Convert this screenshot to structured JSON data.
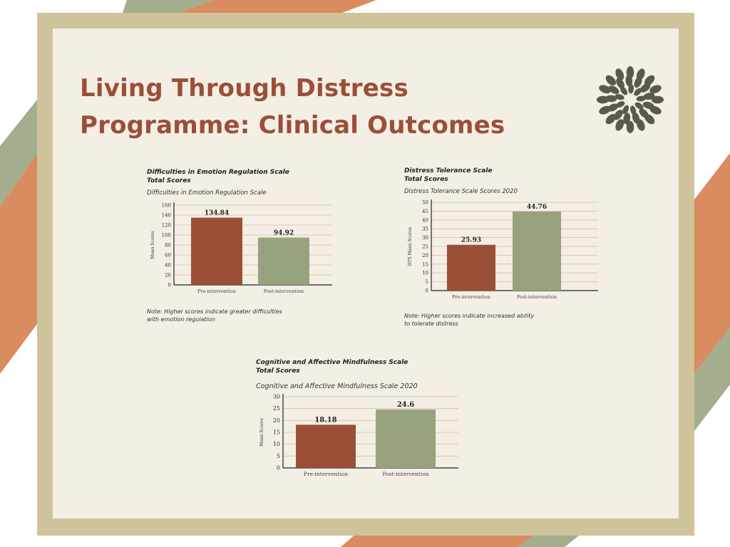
{
  "page": {
    "title_lines": [
      "Living Through Distress",
      "Programme: Clinical Outcomes"
    ]
  },
  "colors": {
    "frame": "#cfc39b",
    "card": "#f3efe5",
    "title": "#9b4f37",
    "pre_bar": "#9b4f37",
    "post_bar": "#97a37f",
    "gridline": "#e6b9a1",
    "decor_green": "#a3ae8f",
    "decor_orange": "#d98c60",
    "logo": "#5a5a4a"
  },
  "logo": {
    "icon": "leaf-wreath-icon"
  },
  "chart_data": [
    {
      "type": "bar",
      "title_lines": [
        "Difficulties in Emotion Regulation Scale",
        "Total Scores"
      ],
      "subtitle": "Difficulties in Emotion Regulation Scale",
      "ylabel": "Mean Scores",
      "xlabel": "",
      "categories": [
        "Pre-intervention",
        "Post-intervention"
      ],
      "values": [
        134.84,
        94.92
      ],
      "value_labels": [
        "134.84",
        "94.92"
      ],
      "ylim": [
        0,
        160
      ],
      "yticks": [
        0,
        20,
        40,
        60,
        80,
        100,
        120,
        140,
        160
      ],
      "grid": true,
      "note_lines": [
        "Note: Higher scores indicate greater difficulties",
        "with emotion regulation"
      ]
    },
    {
      "type": "bar",
      "title_lines": [
        "Distress Tolerance Scale",
        "Total Scores"
      ],
      "subtitle": "Distress Tolerance Scale Scores 2020",
      "ylabel": "DTS Mean Scores",
      "xlabel": "",
      "categories": [
        "Pre-intervention",
        "Post-intervention"
      ],
      "values": [
        25.93,
        44.76
      ],
      "value_labels": [
        "25.93",
        "44.76"
      ],
      "ylim": [
        0,
        50
      ],
      "yticks": [
        0,
        5,
        10,
        15,
        20,
        25,
        30,
        35,
        40,
        45,
        50
      ],
      "grid": true,
      "note_lines": [
        "Note: Higher scores indicate increased ability",
        "to tolerate distress"
      ]
    },
    {
      "type": "bar",
      "title_lines": [
        "Cognitive and Affective Mindfulness Scale",
        "Total Scores"
      ],
      "subtitle": "Cognitive and Affective Mindfulness Scale 2020",
      "ylabel": "Mean Scores",
      "xlabel": "",
      "categories": [
        "Pre-intervention",
        "Post-intervention"
      ],
      "values": [
        18.18,
        24.6
      ],
      "value_labels": [
        "18.18",
        "24.6"
      ],
      "ylim": [
        0,
        30
      ],
      "yticks": [
        0,
        5,
        10,
        15,
        20,
        25,
        30
      ],
      "grid": true,
      "note_lines": []
    }
  ]
}
